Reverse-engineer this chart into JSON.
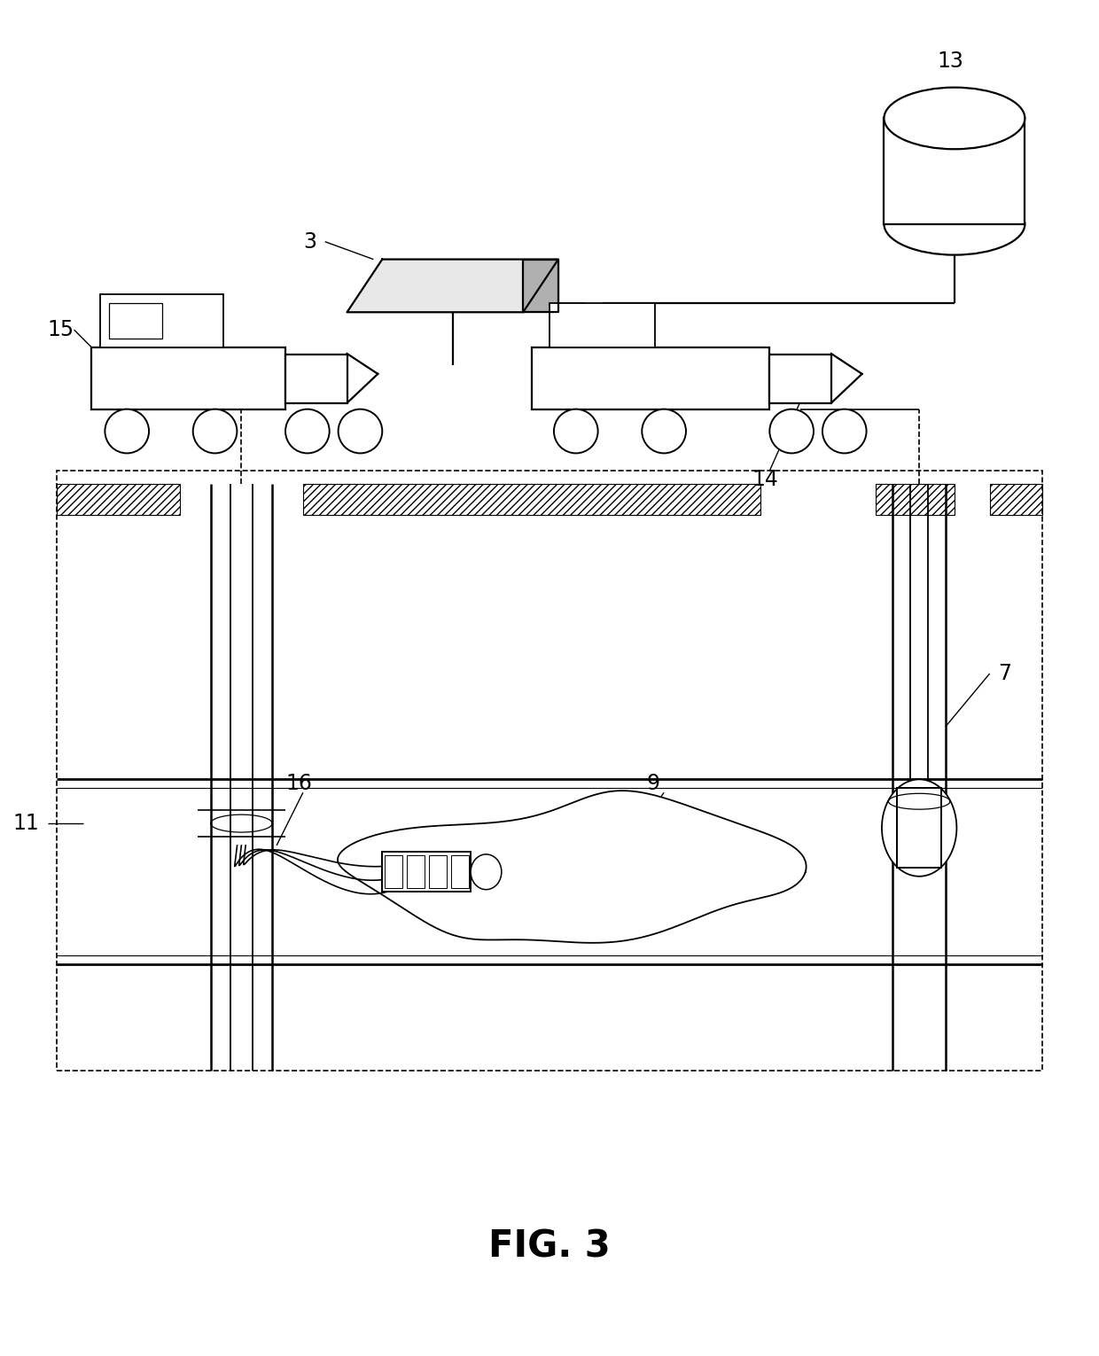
{
  "title": "FIG. 3",
  "bg_color": "#ffffff",
  "fig_width": 12.4,
  "fig_height": 15.3,
  "dpi": 100
}
